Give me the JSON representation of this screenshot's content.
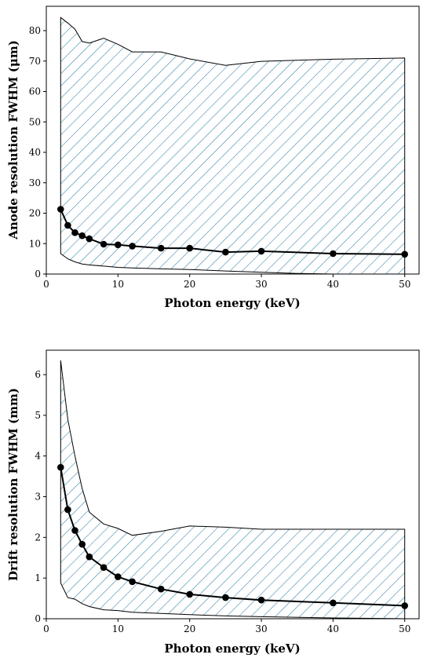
{
  "chart_data": [
    {
      "type": "line",
      "xlabel": "Photon energy (keV)",
      "ylabel": "Anode resolution FWHM (μm)",
      "xlim": [
        0,
        52
      ],
      "ylim": [
        0,
        88
      ],
      "xticks": [
        0,
        10,
        20,
        30,
        40,
        50
      ],
      "yticks": [
        0,
        10,
        20,
        30,
        40,
        50,
        60,
        70,
        80
      ],
      "hatch_color": "#2e7fa6",
      "series": [
        {
          "x": [
            2,
            3,
            4,
            5,
            6,
            8,
            10,
            12,
            16,
            20,
            25,
            30,
            40,
            50
          ],
          "values": [
            21.3,
            16.0,
            13.6,
            12.6,
            11.6,
            9.8,
            9.6,
            9.2,
            8.5,
            8.5,
            7.2,
            7.5,
            6.7,
            6.5
          ]
        }
      ],
      "band": {
        "x_upper": [
          2,
          3,
          4,
          5,
          6,
          8,
          10,
          12,
          16,
          20,
          25,
          30,
          40,
          50
        ],
        "upper": [
          84.3,
          82.5,
          80.5,
          76.4,
          75.9,
          77.5,
          75.5,
          73.0,
          73.0,
          70.7,
          68.6,
          69.9,
          70.6,
          71.0
        ],
        "x_lower": [
          2,
          3,
          4,
          5,
          6,
          8,
          10,
          12,
          16,
          20,
          25,
          30,
          35,
          40,
          50
        ],
        "lower": [
          6.7,
          5.0,
          4.0,
          3.3,
          3.0,
          2.6,
          2.2,
          2.0,
          1.7,
          1.5,
          1.0,
          0.6,
          0.2,
          0.0,
          0.0
        ]
      }
    },
    {
      "type": "line",
      "xlabel": "Photon energy (keV)",
      "ylabel": "Drift resolution FWHM (mm)",
      "xlim": [
        0,
        52
      ],
      "ylim": [
        0,
        6.6
      ],
      "xticks": [
        0,
        10,
        20,
        30,
        40,
        50
      ],
      "yticks": [
        0,
        1,
        2,
        3,
        4,
        5,
        6
      ],
      "hatch_color": "#2e7fa6",
      "series": [
        {
          "x": [
            2,
            3,
            4,
            5,
            6,
            8,
            10,
            12,
            16,
            20,
            25,
            30,
            40,
            50
          ],
          "values": [
            3.72,
            2.68,
            2.17,
            1.83,
            1.52,
            1.26,
            1.03,
            0.91,
            0.73,
            0.6,
            0.52,
            0.46,
            0.39,
            0.32
          ]
        }
      ],
      "band": {
        "x_upper": [
          2,
          3,
          4,
          5,
          6,
          8,
          10,
          12,
          16,
          20,
          25,
          30,
          40,
          50
        ],
        "upper": [
          6.35,
          4.9,
          4.0,
          3.2,
          2.62,
          2.33,
          2.22,
          2.05,
          2.15,
          2.28,
          2.25,
          2.2,
          2.2,
          2.2
        ],
        "x_lower": [
          2,
          3,
          4,
          5,
          6,
          8,
          10,
          12,
          16,
          20,
          25,
          30,
          40,
          50
        ],
        "lower": [
          0.88,
          0.52,
          0.48,
          0.37,
          0.3,
          0.22,
          0.2,
          0.16,
          0.13,
          0.1,
          0.07,
          0.05,
          0.02,
          0.0
        ]
      }
    }
  ]
}
